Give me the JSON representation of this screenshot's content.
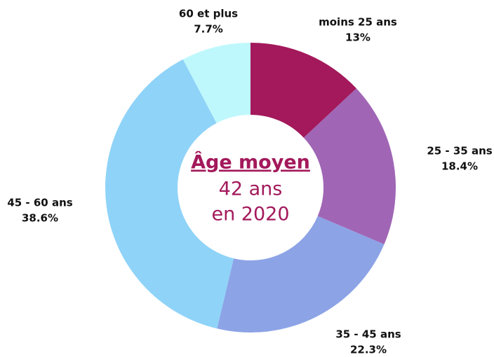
{
  "chart_data": {
    "type": "donut",
    "center_text": [
      "Âge moyen",
      "42 ans",
      "en 2020"
    ],
    "categories": [
      "moins 25 ans",
      "25 - 35 ans",
      "35 - 45 ans",
      "45 - 60 ans",
      "60 et plus"
    ],
    "values": [
      13,
      18.4,
      22.3,
      38.6,
      7.7
    ],
    "value_labels": [
      "13%",
      "18.4%",
      "22.3%",
      "38.6%",
      "7.7%"
    ],
    "colors": [
      "#a3195b",
      "#a066b5",
      "#8ca3e6",
      "#8fd3f8",
      "#bff8fc"
    ]
  }
}
